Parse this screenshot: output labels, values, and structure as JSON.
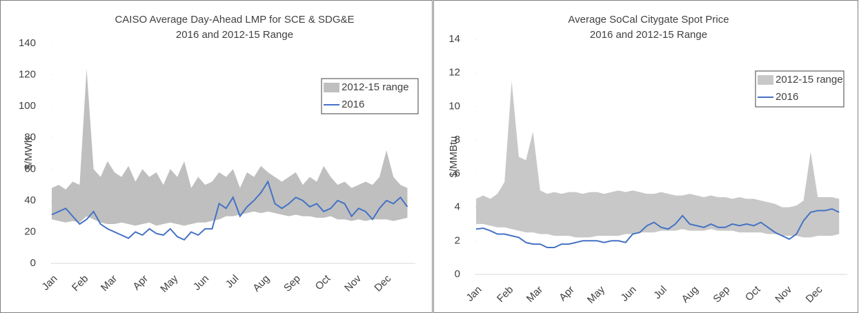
{
  "chart_data": [
    {
      "type": "range",
      "title": "CAISO Average Day-Ahead LMP for SCE & SDG&E",
      "subtitle": "2016 and 2012-15 Range",
      "y_label": "$/MWh",
      "x": [
        1,
        8,
        15,
        22,
        29,
        36,
        43,
        50,
        57,
        64,
        71,
        78,
        85,
        92,
        99,
        106,
        113,
        120,
        127,
        134,
        141,
        148,
        155,
        162,
        169,
        176,
        183,
        190,
        197,
        204,
        211,
        218,
        225,
        232,
        239,
        246,
        253,
        260,
        267,
        274,
        281,
        288,
        295,
        302,
        309,
        316,
        323,
        330,
        337,
        344,
        351,
        358
      ],
      "xlim": [
        1,
        366
      ],
      "xticks": [
        {
          "value": 1,
          "label": "Jan"
        },
        {
          "value": 32,
          "label": "Feb"
        },
        {
          "value": 61,
          "label": "Mar"
        },
        {
          "value": 92,
          "label": "Apr"
        },
        {
          "value": 122,
          "label": "May"
        },
        {
          "value": 153,
          "label": "Jun"
        },
        {
          "value": 183,
          "label": "Jul"
        },
        {
          "value": 214,
          "label": "Aug"
        },
        {
          "value": 245,
          "label": "Sep"
        },
        {
          "value": 275,
          "label": "Oct"
        },
        {
          "value": 306,
          "label": "Nov"
        },
        {
          "value": 336,
          "label": "Dec"
        }
      ],
      "ylim": [
        0,
        140
      ],
      "yticks": [
        0,
        20,
        40,
        60,
        80,
        100,
        120,
        140
      ],
      "grid": false,
      "legend": "upper right",
      "series": [
        {
          "name": "2012-15 range",
          "color": "#bfbfbf",
          "high": [
            48,
            50,
            47,
            52,
            50,
            124,
            60,
            55,
            65,
            58,
            55,
            62,
            52,
            60,
            55,
            58,
            50,
            60,
            55,
            65,
            48,
            55,
            50,
            52,
            58,
            55,
            60,
            48,
            58,
            55,
            62,
            58,
            55,
            52,
            55,
            58,
            50,
            55,
            52,
            62,
            55,
            50,
            52,
            48,
            50,
            52,
            50,
            55,
            72,
            55,
            50,
            48
          ],
          "low": [
            28,
            27,
            26,
            27,
            26,
            30,
            28,
            26,
            25,
            25,
            26,
            25,
            24,
            25,
            26,
            24,
            25,
            26,
            25,
            24,
            25,
            26,
            26,
            27,
            28,
            30,
            30,
            31,
            32,
            33,
            32,
            33,
            32,
            31,
            30,
            31,
            30,
            30,
            29,
            29,
            30,
            28,
            28,
            27,
            28,
            27,
            28,
            28,
            28,
            27,
            28,
            29
          ]
        },
        {
          "name": "2016",
          "color": "#4472c4",
          "values": [
            31,
            33,
            35,
            30,
            25,
            28,
            33,
            25,
            22,
            20,
            18,
            16,
            20,
            18,
            22,
            19,
            18,
            22,
            17,
            15,
            20,
            18,
            22,
            22,
            38,
            35,
            42,
            30,
            36,
            40,
            45,
            52,
            38,
            35,
            38,
            42,
            40,
            36,
            38,
            33,
            35,
            40,
            38,
            30,
            35,
            33,
            28,
            35,
            40,
            38,
            42,
            36
          ]
        }
      ]
    },
    {
      "type": "range",
      "title": "Average SoCal Citygate Spot Price",
      "subtitle": "2016 and 2012-15 Range",
      "y_label": "$/MMBtu",
      "x": [
        1,
        8,
        15,
        22,
        29,
        36,
        43,
        50,
        57,
        64,
        71,
        78,
        85,
        92,
        99,
        106,
        113,
        120,
        127,
        134,
        141,
        148,
        155,
        162,
        169,
        176,
        183,
        190,
        197,
        204,
        211,
        218,
        225,
        232,
        239,
        246,
        253,
        260,
        267,
        274,
        281,
        288,
        295,
        302,
        309,
        316,
        323,
        330,
        337,
        344,
        351,
        358
      ],
      "xlim": [
        1,
        366
      ],
      "xticks": [
        {
          "value": 1,
          "label": "Jan"
        },
        {
          "value": 32,
          "label": "Feb"
        },
        {
          "value": 61,
          "label": "Mar"
        },
        {
          "value": 92,
          "label": "Apr"
        },
        {
          "value": 122,
          "label": "May"
        },
        {
          "value": 153,
          "label": "Jun"
        },
        {
          "value": 183,
          "label": "Jul"
        },
        {
          "value": 214,
          "label": "Aug"
        },
        {
          "value": 245,
          "label": "Sep"
        },
        {
          "value": 275,
          "label": "Oct"
        },
        {
          "value": 306,
          "label": "Nov"
        },
        {
          "value": 336,
          "label": "Dec"
        }
      ],
      "ylim": [
        0,
        14
      ],
      "yticks": [
        0,
        2,
        4,
        6,
        8,
        10,
        12,
        14
      ],
      "grid": false,
      "legend": "upper right",
      "series": [
        {
          "name": "2012-15 range",
          "color": "#c8c8c8",
          "high": [
            4.5,
            4.7,
            4.5,
            4.8,
            5.5,
            11.5,
            7.0,
            6.8,
            8.5,
            5.0,
            4.8,
            4.9,
            4.8,
            4.9,
            4.9,
            4.8,
            4.9,
            4.9,
            4.8,
            4.9,
            5.0,
            4.9,
            5.0,
            4.9,
            4.8,
            4.8,
            4.9,
            4.8,
            4.7,
            4.7,
            4.8,
            4.7,
            4.6,
            4.7,
            4.6,
            4.6,
            4.5,
            4.6,
            4.5,
            4.5,
            4.4,
            4.3,
            4.2,
            4.0,
            4.0,
            4.1,
            4.4,
            7.3,
            4.6,
            4.6,
            4.6,
            4.5
          ],
          "low": [
            3.0,
            3.0,
            2.9,
            2.8,
            2.8,
            2.7,
            2.6,
            2.5,
            2.5,
            2.4,
            2.4,
            2.3,
            2.3,
            2.3,
            2.2,
            2.2,
            2.2,
            2.3,
            2.3,
            2.3,
            2.3,
            2.4,
            2.4,
            2.5,
            2.5,
            2.5,
            2.6,
            2.6,
            2.6,
            2.7,
            2.6,
            2.6,
            2.6,
            2.7,
            2.6,
            2.6,
            2.6,
            2.5,
            2.5,
            2.5,
            2.5,
            2.4,
            2.4,
            2.3,
            2.3,
            2.3,
            2.2,
            2.2,
            2.3,
            2.3,
            2.3,
            2.4
          ]
        },
        {
          "name": "2016",
          "color": "#4472c4",
          "values": [
            2.7,
            2.75,
            2.6,
            2.4,
            2.4,
            2.3,
            2.2,
            1.9,
            1.8,
            1.8,
            1.6,
            1.6,
            1.8,
            1.8,
            1.9,
            2.0,
            2.0,
            2.0,
            1.9,
            2.0,
            2.0,
            1.9,
            2.4,
            2.5,
            2.9,
            3.1,
            2.8,
            2.7,
            3.0,
            3.5,
            3.0,
            2.9,
            2.8,
            3.0,
            2.8,
            2.8,
            3.0,
            2.9,
            3.0,
            2.9,
            3.1,
            2.8,
            2.5,
            2.3,
            2.1,
            2.4,
            3.2,
            3.7,
            3.8,
            3.8,
            3.9,
            3.7
          ]
        }
      ]
    }
  ]
}
